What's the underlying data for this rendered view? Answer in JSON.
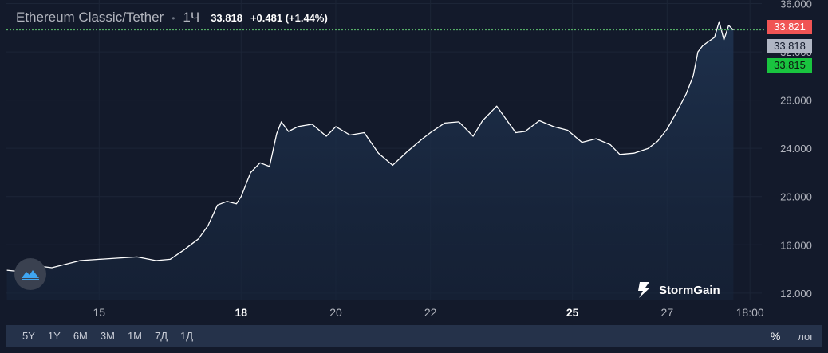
{
  "header": {
    "pair": "Ethereum Classic/Tether",
    "interval": "1Ч",
    "last_price": "33.818",
    "change": "+0.481 (+1.44%)"
  },
  "price_tags": {
    "ask": "33.821",
    "last": "33.818",
    "bid": "33.815"
  },
  "brand": {
    "name": "StormGain"
  },
  "toolbar": {
    "timeframes": [
      "5Y",
      "1Y",
      "6M",
      "3M",
      "1M",
      "7Д",
      "1Д"
    ],
    "percent_label": "%",
    "log_label": "лог"
  },
  "colors": {
    "background": "#131a2b",
    "line": "#ffffff",
    "ask": "#f05454",
    "bid": "#19c43f",
    "last_line": "#5fc46f"
  },
  "chart_data": {
    "type": "area",
    "title": "",
    "xlabel": "",
    "ylabel": "",
    "x_ticks": [
      {
        "label": "15",
        "bold": false,
        "x": 15
      },
      {
        "label": "18",
        "bold": true,
        "x": 18
      },
      {
        "label": "20",
        "bold": false,
        "x": 20
      },
      {
        "label": "22",
        "bold": false,
        "x": 22
      },
      {
        "label": "25",
        "bold": true,
        "x": 25
      },
      {
        "label": "27",
        "bold": false,
        "x": 27
      },
      {
        "label": "18:00",
        "bold": false,
        "x": 28.75
      }
    ],
    "y_ticks": [
      {
        "label": "12.000",
        "v": 12
      },
      {
        "label": "16.000",
        "v": 16
      },
      {
        "label": "20.000",
        "v": 20
      },
      {
        "label": "24.000",
        "v": 24
      },
      {
        "label": "28.000",
        "v": 28
      },
      {
        "label": "32.000",
        "v": 32
      },
      {
        "label": "36.000",
        "v": 36
      }
    ],
    "xlim": [
      13.04,
      29.0
    ],
    "ylim": [
      11.46,
      36.3
    ],
    "grid": true,
    "last_value": 33.818,
    "x": [
      13.05,
      13.3,
      13.6,
      14.0,
      14.3,
      14.6,
      15.0,
      15.4,
      15.8,
      16.2,
      16.5,
      16.8,
      17.1,
      17.3,
      17.5,
      17.7,
      17.9,
      18.0,
      18.2,
      18.4,
      18.6,
      18.75,
      18.85,
      19.0,
      19.2,
      19.5,
      19.8,
      20.0,
      20.3,
      20.6,
      20.9,
      21.2,
      21.5,
      21.8,
      22.0,
      22.3,
      22.6,
      22.9,
      23.1,
      23.4,
      23.6,
      23.8,
      24.0,
      24.3,
      24.6,
      24.9,
      25.2,
      25.5,
      25.8,
      26.0,
      26.3,
      26.6,
      26.8,
      27.0,
      27.2,
      27.4,
      27.55,
      27.65,
      27.75,
      27.85,
      28.0,
      28.1,
      28.2,
      28.3,
      28.4
    ],
    "y": [
      13.9,
      13.8,
      14.3,
      14.1,
      14.4,
      14.7,
      14.8,
      14.9,
      15.0,
      14.7,
      14.8,
      15.6,
      16.5,
      17.6,
      19.3,
      19.6,
      19.4,
      20.0,
      22.0,
      22.8,
      22.5,
      25.2,
      26.2,
      25.4,
      25.8,
      26.0,
      25.0,
      25.8,
      25.1,
      25.3,
      23.6,
      22.6,
      23.7,
      24.7,
      25.3,
      26.1,
      26.2,
      25.0,
      26.3,
      27.5,
      26.4,
      25.3,
      25.4,
      26.3,
      25.8,
      25.5,
      24.5,
      24.8,
      24.3,
      23.5,
      23.6,
      24.0,
      24.6,
      25.6,
      27.0,
      28.5,
      30.0,
      32.0,
      32.5,
      32.8,
      33.2,
      34.5,
      33.0,
      34.2,
      33.8
    ]
  }
}
